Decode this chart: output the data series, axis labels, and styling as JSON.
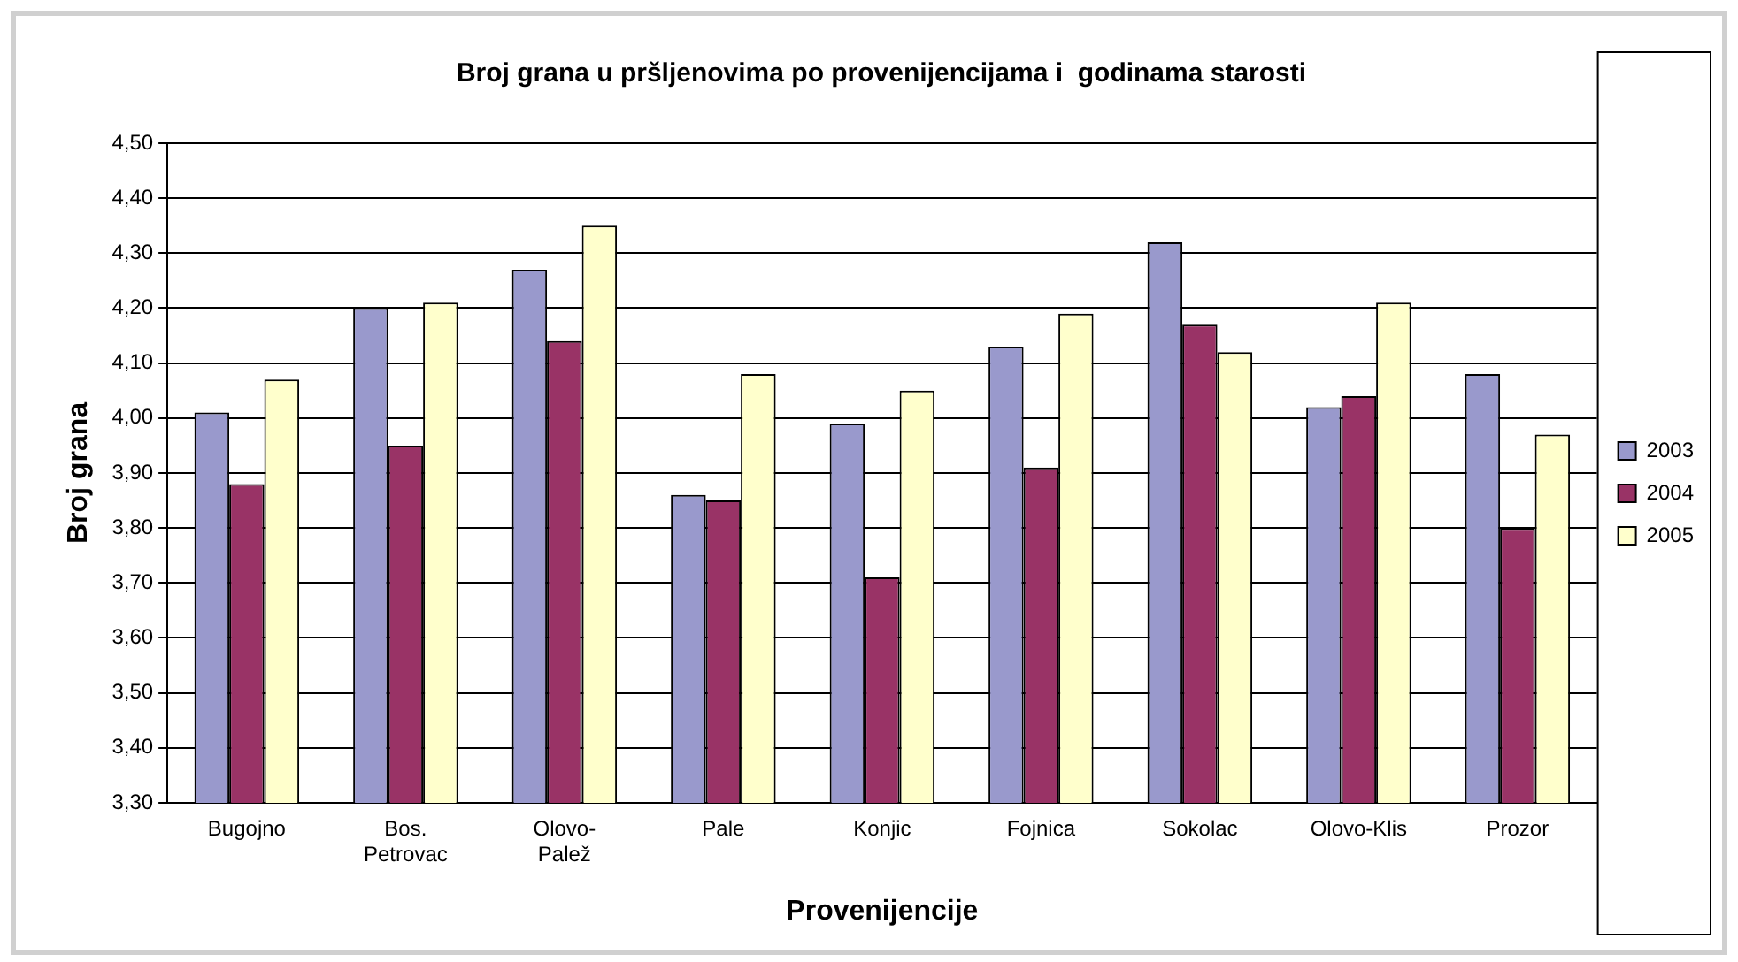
{
  "chart_data": {
    "type": "bar",
    "title": "Broj grana u pršljenovima po provenijencijama i  godinama starosti",
    "xlabel": "Provenijencije",
    "ylabel": "Broj grana",
    "categories": [
      "Bugojno",
      "Bos. Petrovac",
      "Olovo-Palež",
      "Pale",
      "Konjic",
      "Fojnica",
      "Sokolac",
      "Olovo-Klis",
      "Prozor"
    ],
    "series": [
      {
        "name": "2003",
        "color": "#9999cc",
        "values": [
          4.01,
          4.2,
          4.27,
          3.86,
          3.99,
          4.13,
          4.32,
          4.02,
          4.08
        ]
      },
      {
        "name": "2004",
        "color": "#993366",
        "values": [
          3.88,
          3.95,
          4.14,
          3.85,
          3.71,
          3.91,
          4.17,
          4.04,
          3.8
        ]
      },
      {
        "name": "2005",
        "color": "#ffffcc",
        "values": [
          4.07,
          4.21,
          4.35,
          4.08,
          4.05,
          4.19,
          4.12,
          4.21,
          3.97
        ]
      }
    ],
    "ylim": [
      3.3,
      4.5
    ],
    "yticks": [
      {
        "value": 3.3,
        "label": "3,30"
      },
      {
        "value": 3.4,
        "label": "3,40"
      },
      {
        "value": 3.5,
        "label": "3,50"
      },
      {
        "value": 3.6,
        "label": "3,60"
      },
      {
        "value": 3.7,
        "label": "3,70"
      },
      {
        "value": 3.8,
        "label": "3,80"
      },
      {
        "value": 3.9,
        "label": "3,90"
      },
      {
        "value": 4.0,
        "label": "4,00"
      },
      {
        "value": 4.1,
        "label": "4,10"
      },
      {
        "value": 4.2,
        "label": "4,20"
      },
      {
        "value": 4.3,
        "label": "4,30"
      },
      {
        "value": 4.4,
        "label": "4,40"
      },
      {
        "value": 4.5,
        "label": "4,50"
      }
    ],
    "grid": "y",
    "legend": "right"
  }
}
